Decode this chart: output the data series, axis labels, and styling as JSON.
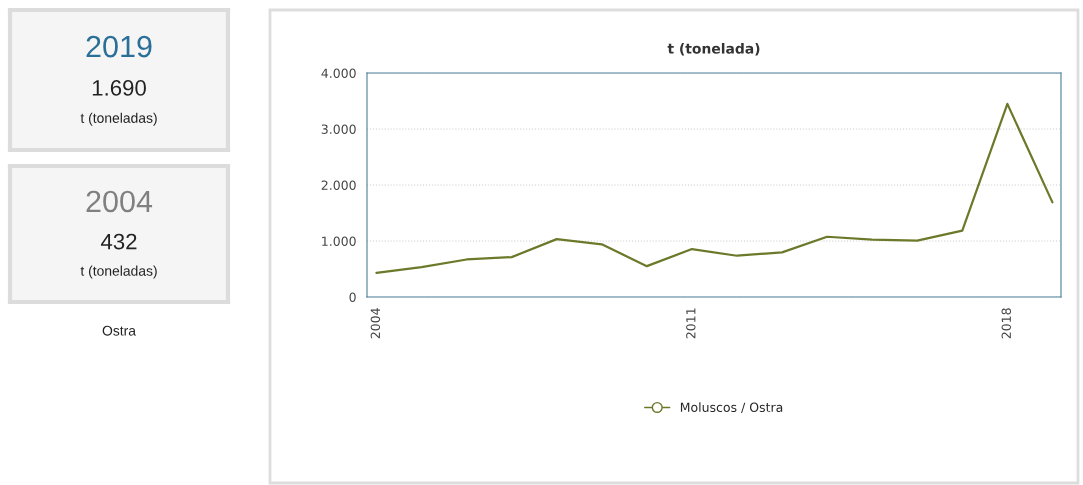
{
  "chart_data": [
    {
      "type": "other",
      "title": "2019",
      "annotations": [
        "1.690",
        "t (toneladas)"
      ]
    },
    {
      "type": "other",
      "title": "2004",
      "annotations": [
        "432",
        "t (toneladas)",
        "Ostra"
      ]
    },
    {
      "type": "line",
      "title": "t (tonelada)",
      "x": [
        2004,
        2005,
        2006,
        2007,
        2008,
        2009,
        2010,
        2011,
        2012,
        2013,
        2014,
        2015,
        2016,
        2017,
        2018,
        2019
      ],
      "series": [
        {
          "name": "Moluscos / Ostra",
          "color": "#6b7a2a",
          "values": [
            432,
            534,
            670,
            712,
            1034,
            941,
            551,
            856,
            737,
            797,
            1076,
            1025,
            1008,
            1186,
            3449,
            1690
          ]
        }
      ],
      "xlim": [
        2003.79,
        2019.19
      ],
      "xticks": [
        2004,
        2011,
        2018
      ],
      "ylim": [
        0,
        4000
      ],
      "yticks": [
        {
          "value": 0,
          "label": "0"
        },
        {
          "value": 1000,
          "label": "1.000"
        },
        {
          "value": 2000,
          "label": "2.000"
        },
        {
          "value": 3000,
          "label": "3.000"
        },
        {
          "value": 4000,
          "label": "4.000"
        }
      ],
      "grid": "y",
      "legend": "bottom",
      "line_style": "solid"
    }
  ]
}
